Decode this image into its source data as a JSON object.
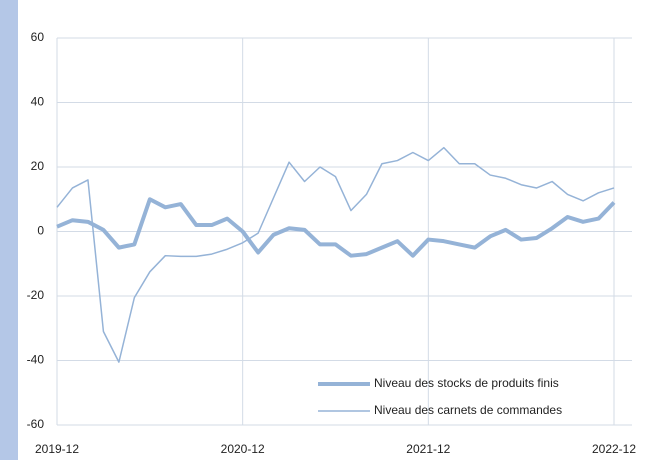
{
  "chart_data": {
    "type": "line",
    "categories": [
      "2019-12",
      null,
      null,
      null,
      null,
      null,
      null,
      null,
      null,
      null,
      null,
      null,
      "2020-12",
      null,
      null,
      null,
      null,
      null,
      null,
      null,
      null,
      null,
      null,
      null,
      "2021-12",
      null,
      null,
      null,
      null,
      null,
      null,
      null,
      null,
      null,
      null,
      null,
      "2022-12"
    ],
    "series": [
      {
        "name": "Niveau des stocks de produits finis",
        "color": "#95b3d7",
        "width": 4,
        "values": [
          1.5,
          3.5,
          3,
          0.5,
          -5,
          -4,
          10,
          7.5,
          8.5,
          2,
          2,
          4,
          0,
          -6.5,
          -1,
          1,
          0.5,
          -4,
          -4,
          -7.5,
          -7,
          -5,
          -3,
          -7.5,
          -2.5,
          -3,
          -4,
          -5,
          -1.5,
          0.5,
          -2.5,
          -2,
          1,
          4.5,
          3,
          4,
          9
        ]
      },
      {
        "name": "Niveau des carnets de commandes",
        "color": "#95b3d7",
        "width": 1.5,
        "values": [
          7.5,
          13.5,
          16,
          -31,
          -40.5,
          -20.5,
          -12.5,
          -7.5,
          -7.7,
          -7.7,
          -7,
          -5.5,
          -3.5,
          -0.5,
          10.5,
          21.5,
          15.5,
          20,
          17,
          6.5,
          11.5,
          21,
          22,
          24.5,
          22,
          26,
          21,
          21,
          17.5,
          16.5,
          14.5,
          13.5,
          15.5,
          11.5,
          9.5,
          12,
          13.5
        ]
      }
    ],
    "ylim": [
      -60,
      60
    ],
    "yticks": [
      -60,
      -40,
      -20,
      0,
      20,
      40,
      60
    ],
    "grid": true,
    "legend": "bottom-right"
  }
}
